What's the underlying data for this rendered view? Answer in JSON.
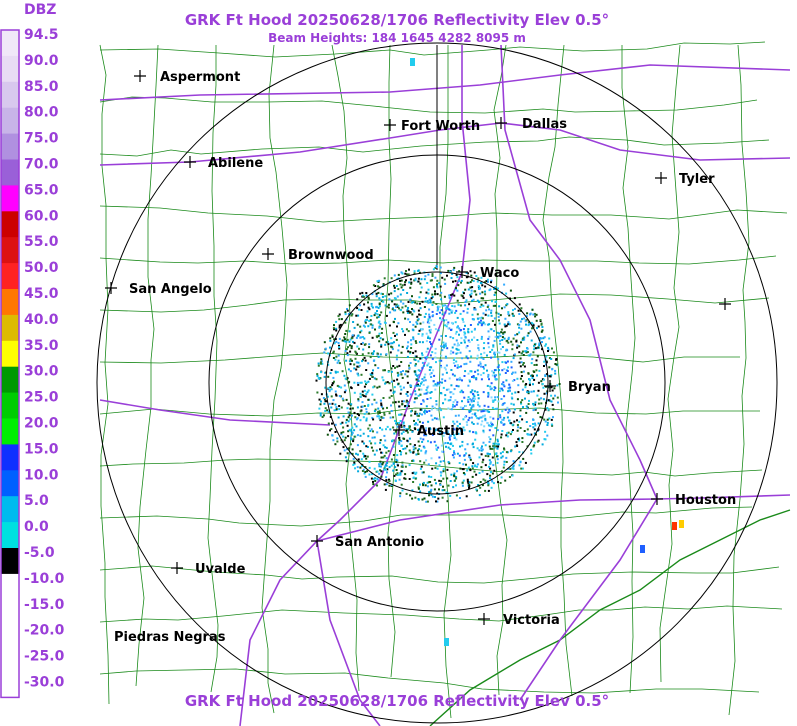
{
  "header": {
    "title": "GRK Ft Hood 20250628/1706 Reflectivity Elev 0.5°",
    "subtitle": "Beam Heights: 184 1645 4282 8095 m"
  },
  "legend": {
    "unit": "DBZ",
    "labels": [
      "94.5",
      "90.0",
      "85.0",
      "80.0",
      "75.0",
      "70.0",
      "65.0",
      "60.0",
      "55.0",
      "50.0",
      "45.0",
      "40.0",
      "35.0",
      "30.0",
      "25.0",
      "20.0",
      "15.0",
      "10.0",
      "5.0",
      "0.0",
      "-5.0",
      "-10.0",
      "-15.0",
      "-20.0",
      "-25.0",
      "-30.0"
    ]
  },
  "cities": [
    "Aspermont",
    "Fort Worth",
    "Dallas",
    "Abilene",
    "Tyler",
    "Brownwood",
    "Waco",
    "San Angelo",
    "Bryan",
    "Austin",
    "Houston",
    "San Antonio",
    "Uvalde",
    "Victoria",
    "Piedras Negras"
  ],
  "footer": {
    "title": "GRK Ft Hood 20250628/1706 Reflectivity Elev 0.5°"
  }
}
